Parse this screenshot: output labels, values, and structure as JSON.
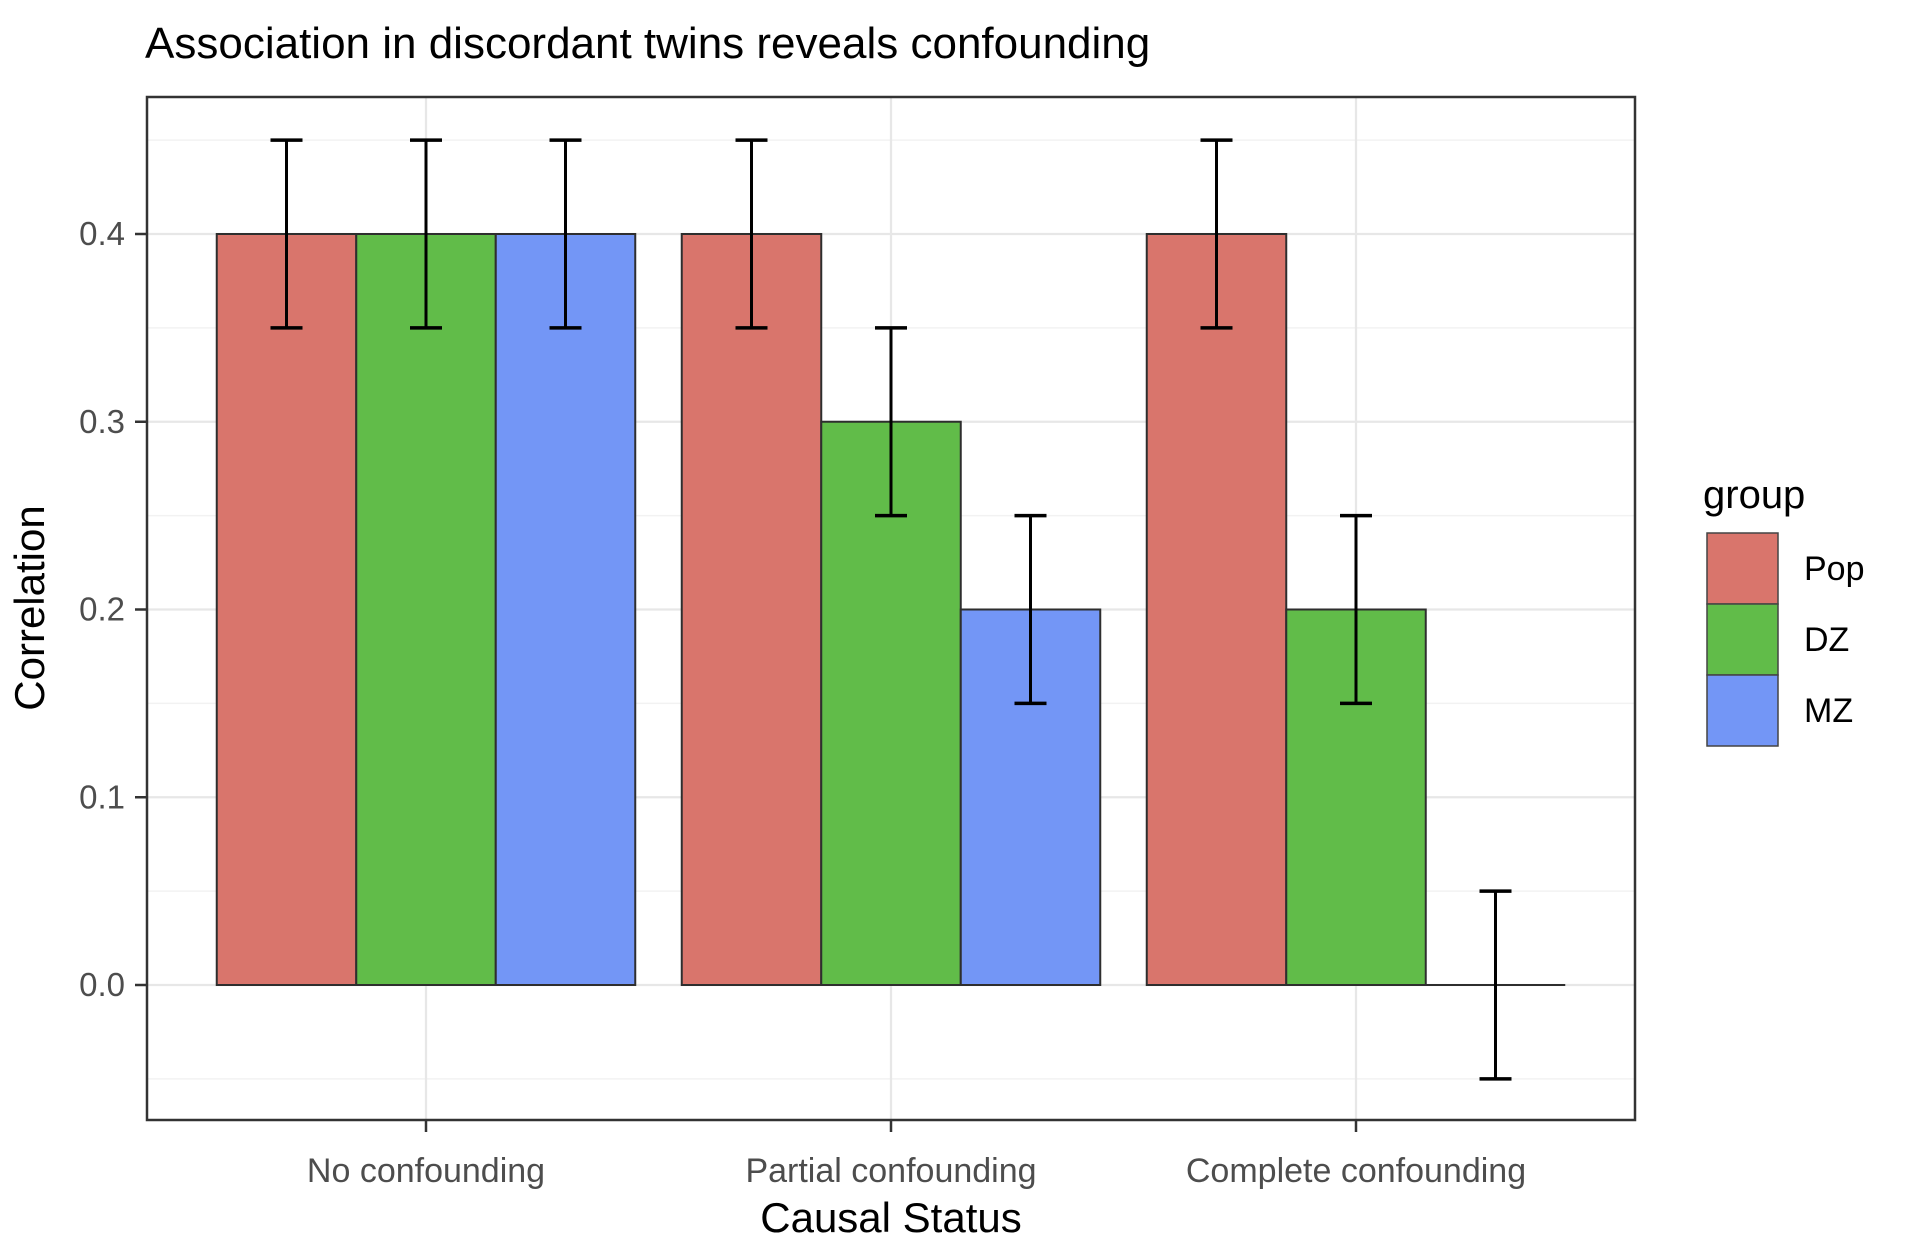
{
  "chart_data": {
    "type": "bar",
    "title": "Association in discordant twins reveals confounding",
    "xlabel": "Causal Status",
    "ylabel": "Correlation",
    "categories": [
      "No confounding",
      "Partial confounding",
      "Complete confounding"
    ],
    "series": [
      {
        "name": "Pop",
        "color": "#D9756C",
        "values": [
          0.4,
          0.4,
          0.4
        ],
        "errors": [
          0.05,
          0.05,
          0.05
        ]
      },
      {
        "name": "DZ",
        "color": "#61BC49",
        "values": [
          0.4,
          0.3,
          0.2
        ],
        "errors": [
          0.05,
          0.05,
          0.05
        ]
      },
      {
        "name": "MZ",
        "color": "#7396F6",
        "values": [
          0.4,
          0.2,
          0.0
        ],
        "errors": [
          0.05,
          0.05,
          0.05
        ]
      }
    ],
    "error_bar_halfwidth": 0.05,
    "yticks": [
      0.0,
      0.1,
      0.2,
      0.3,
      0.4
    ],
    "ytick_labels": [
      "0.0",
      "0.1",
      "0.2",
      "0.3",
      "0.4"
    ],
    "ylim": [
      -0.073,
      0.473
    ],
    "grid": true,
    "legend_title": "group",
    "legend_position": "right",
    "colors": {
      "bar_stroke": "#2E2E2E",
      "error_bar": "#000000",
      "panel_border": "#333333",
      "grid_major": "#E7E7E7",
      "grid_minor": "#F2F2F2",
      "tick_label": "#4D4D4D",
      "axis_tick": "#333333",
      "text": "#000000",
      "background": "#FFFFFF"
    }
  }
}
